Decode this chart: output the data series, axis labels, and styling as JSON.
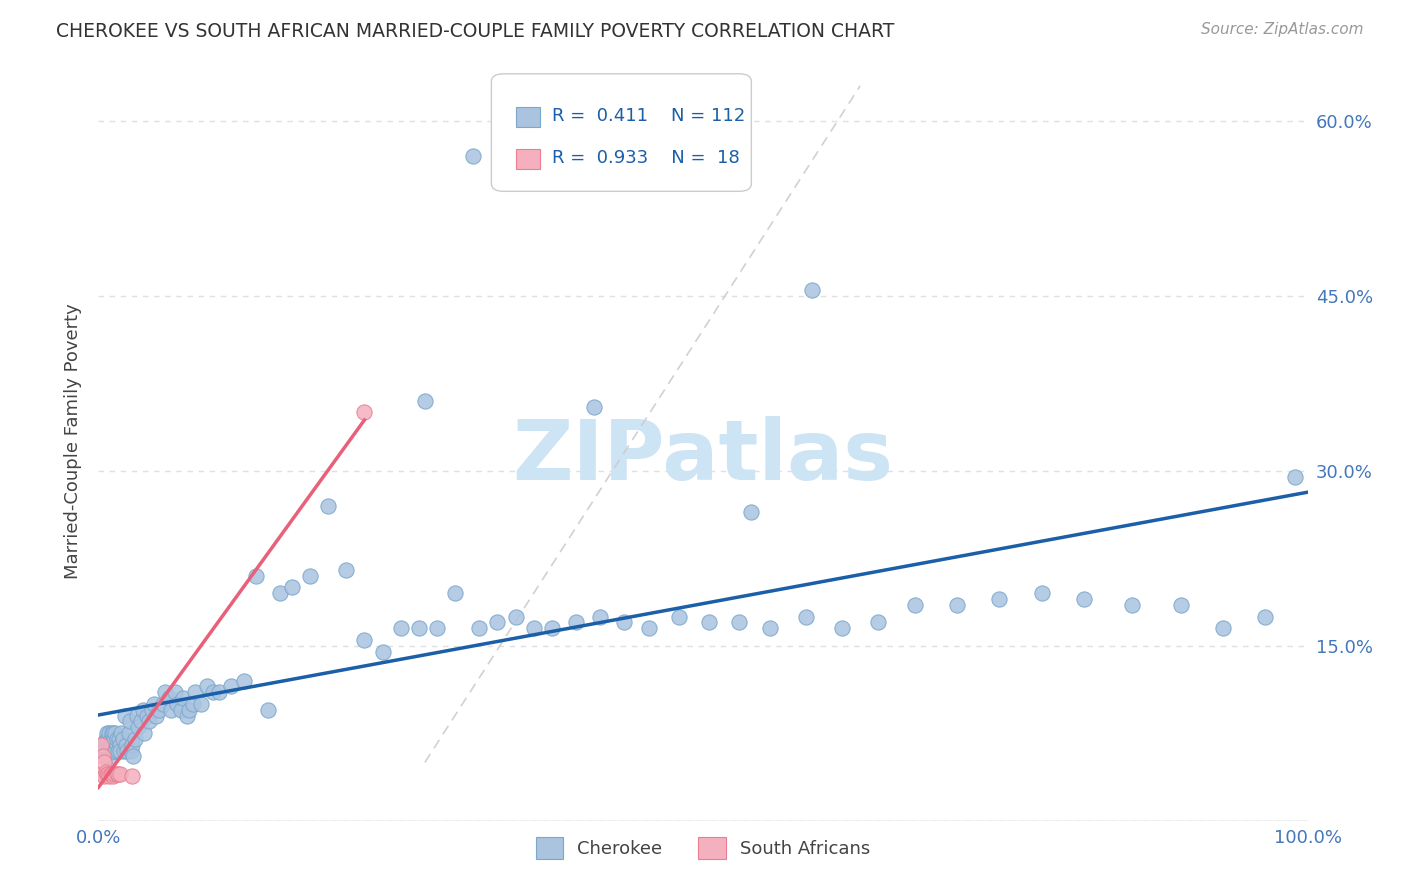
{
  "title": "CHEROKEE VS SOUTH AFRICAN MARRIED-COUPLE FAMILY POVERTY CORRELATION CHART",
  "source": "Source: ZipAtlas.com",
  "ylabel": "Married-Couple Family Poverty",
  "xlim": [
    0,
    1.0
  ],
  "ylim": [
    0,
    0.65
  ],
  "cherokee_color": "#aac4e0",
  "cherokee_edge": "#7ba7cc",
  "sa_color": "#f4b0bf",
  "sa_edge": "#e87f90",
  "trend_cherokee_color": "#1a5fa8",
  "trend_sa_color": "#e8607a",
  "trend_diag_color": "#cccccc",
  "R_cherokee": 0.411,
  "N_cherokee": 112,
  "R_sa": 0.933,
  "N_sa": 18,
  "cherokee_x": [
    0.003,
    0.004,
    0.005,
    0.006,
    0.006,
    0.007,
    0.007,
    0.008,
    0.008,
    0.009,
    0.009,
    0.01,
    0.01,
    0.011,
    0.011,
    0.012,
    0.012,
    0.013,
    0.013,
    0.014,
    0.014,
    0.015,
    0.015,
    0.016,
    0.017,
    0.018,
    0.018,
    0.019,
    0.02,
    0.021,
    0.022,
    0.023,
    0.024,
    0.025,
    0.026,
    0.027,
    0.028,
    0.029,
    0.03,
    0.032,
    0.033,
    0.035,
    0.037,
    0.038,
    0.04,
    0.042,
    0.044,
    0.046,
    0.048,
    0.05,
    0.053,
    0.055,
    0.058,
    0.06,
    0.063,
    0.065,
    0.068,
    0.07,
    0.073,
    0.075,
    0.078,
    0.08,
    0.085,
    0.09,
    0.095,
    0.1,
    0.11,
    0.12,
    0.13,
    0.14,
    0.15,
    0.16,
    0.175,
    0.19,
    0.205,
    0.22,
    0.235,
    0.25,
    0.265,
    0.28,
    0.295,
    0.315,
    0.33,
    0.345,
    0.36,
    0.375,
    0.395,
    0.415,
    0.435,
    0.455,
    0.48,
    0.505,
    0.53,
    0.555,
    0.585,
    0.615,
    0.645,
    0.675,
    0.71,
    0.745,
    0.78,
    0.815,
    0.855,
    0.895,
    0.93,
    0.965,
    0.99,
    0.31,
    0.41,
    0.59,
    0.54,
    0.27
  ],
  "cherokee_y": [
    0.065,
    0.065,
    0.06,
    0.07,
    0.055,
    0.06,
    0.075,
    0.065,
    0.07,
    0.06,
    0.075,
    0.065,
    0.07,
    0.055,
    0.075,
    0.075,
    0.065,
    0.07,
    0.06,
    0.06,
    0.075,
    0.065,
    0.07,
    0.06,
    0.07,
    0.065,
    0.06,
    0.075,
    0.07,
    0.06,
    0.09,
    0.065,
    0.06,
    0.075,
    0.085,
    0.06,
    0.065,
    0.055,
    0.07,
    0.09,
    0.08,
    0.085,
    0.095,
    0.075,
    0.09,
    0.085,
    0.095,
    0.1,
    0.09,
    0.095,
    0.1,
    0.11,
    0.105,
    0.095,
    0.11,
    0.1,
    0.095,
    0.105,
    0.09,
    0.095,
    0.1,
    0.11,
    0.1,
    0.115,
    0.11,
    0.11,
    0.115,
    0.12,
    0.21,
    0.095,
    0.195,
    0.2,
    0.21,
    0.27,
    0.215,
    0.155,
    0.145,
    0.165,
    0.165,
    0.165,
    0.195,
    0.165,
    0.17,
    0.175,
    0.165,
    0.165,
    0.17,
    0.175,
    0.17,
    0.165,
    0.175,
    0.17,
    0.17,
    0.165,
    0.175,
    0.165,
    0.17,
    0.185,
    0.185,
    0.19,
    0.195,
    0.19,
    0.185,
    0.185,
    0.165,
    0.175,
    0.295,
    0.57,
    0.355,
    0.455,
    0.265,
    0.36
  ],
  "sa_x": [
    0.002,
    0.003,
    0.004,
    0.005,
    0.005,
    0.006,
    0.007,
    0.008,
    0.009,
    0.01,
    0.011,
    0.012,
    0.013,
    0.015,
    0.016,
    0.018,
    0.028,
    0.22
  ],
  "sa_y": [
    0.065,
    0.04,
    0.055,
    0.038,
    0.05,
    0.042,
    0.04,
    0.04,
    0.038,
    0.04,
    0.04,
    0.038,
    0.04,
    0.04,
    0.04,
    0.04,
    0.038,
    0.35
  ],
  "background_color": "#ffffff",
  "watermark_color": "#cde4f5",
  "grid_color": "#e0e0e0",
  "tick_color": "#4477bb",
  "label_color": "#444444"
}
